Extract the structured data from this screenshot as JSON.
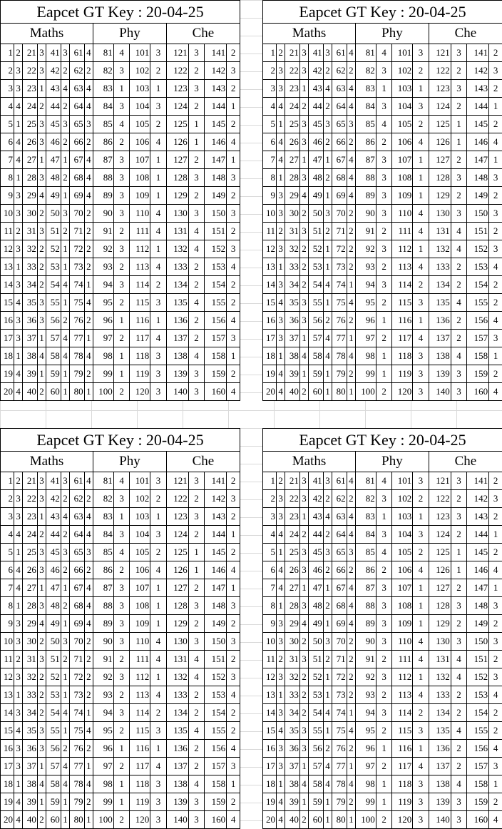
{
  "title": "Eapcet GT Key : 20-04-25",
  "subjects": [
    "Maths",
    "Phy",
    "Che"
  ],
  "rows": [
    [
      1,
      2,
      21,
      3,
      41,
      3,
      61,
      4,
      81,
      4,
      101,
      3,
      121,
      3,
      141,
      2
    ],
    [
      2,
      3,
      22,
      3,
      42,
      2,
      62,
      2,
      82,
      3,
      102,
      2,
      122,
      2,
      142,
      3
    ],
    [
      3,
      3,
      23,
      1,
      43,
      4,
      63,
      4,
      83,
      1,
      103,
      1,
      123,
      3,
      143,
      2
    ],
    [
      4,
      4,
      24,
      2,
      44,
      2,
      64,
      4,
      84,
      3,
      104,
      3,
      124,
      2,
      144,
      1
    ],
    [
      5,
      1,
      25,
      3,
      45,
      3,
      65,
      3,
      85,
      4,
      105,
      2,
      125,
      1,
      145,
      2
    ],
    [
      6,
      4,
      26,
      3,
      46,
      2,
      66,
      2,
      86,
      2,
      106,
      4,
      126,
      1,
      146,
      4
    ],
    [
      7,
      4,
      27,
      1,
      47,
      1,
      67,
      4,
      87,
      3,
      107,
      1,
      127,
      2,
      147,
      1
    ],
    [
      8,
      1,
      28,
      3,
      48,
      2,
      68,
      4,
      88,
      3,
      108,
      1,
      128,
      3,
      148,
      3
    ],
    [
      9,
      3,
      29,
      4,
      49,
      1,
      69,
      4,
      89,
      3,
      109,
      1,
      129,
      2,
      149,
      2
    ],
    [
      10,
      3,
      30,
      2,
      50,
      3,
      70,
      2,
      90,
      3,
      110,
      4,
      130,
      3,
      150,
      3
    ],
    [
      11,
      2,
      31,
      3,
      51,
      2,
      71,
      2,
      91,
      2,
      111,
      4,
      131,
      4,
      151,
      2
    ],
    [
      12,
      3,
      32,
      2,
      52,
      1,
      72,
      2,
      92,
      3,
      112,
      1,
      132,
      4,
      152,
      3
    ],
    [
      13,
      1,
      33,
      2,
      53,
      1,
      73,
      2,
      93,
      2,
      113,
      4,
      133,
      2,
      153,
      4
    ],
    [
      14,
      3,
      34,
      2,
      54,
      4,
      74,
      1,
      94,
      3,
      114,
      2,
      134,
      2,
      154,
      2
    ],
    [
      15,
      4,
      35,
      3,
      55,
      1,
      75,
      4,
      95,
      2,
      115,
      3,
      135,
      4,
      155,
      2
    ],
    [
      16,
      3,
      36,
      3,
      56,
      2,
      76,
      2,
      96,
      1,
      116,
      1,
      136,
      2,
      156,
      4
    ],
    [
      17,
      3,
      37,
      1,
      57,
      4,
      77,
      1,
      97,
      2,
      117,
      4,
      137,
      2,
      157,
      3
    ],
    [
      18,
      1,
      38,
      4,
      58,
      4,
      78,
      4,
      98,
      1,
      118,
      3,
      138,
      4,
      158,
      1
    ],
    [
      19,
      4,
      39,
      1,
      59,
      1,
      79,
      2,
      99,
      1,
      119,
      3,
      139,
      3,
      159,
      2
    ],
    [
      20,
      4,
      40,
      2,
      60,
      1,
      80,
      1,
      100,
      2,
      120,
      3,
      140,
      3,
      160,
      4
    ]
  ]
}
